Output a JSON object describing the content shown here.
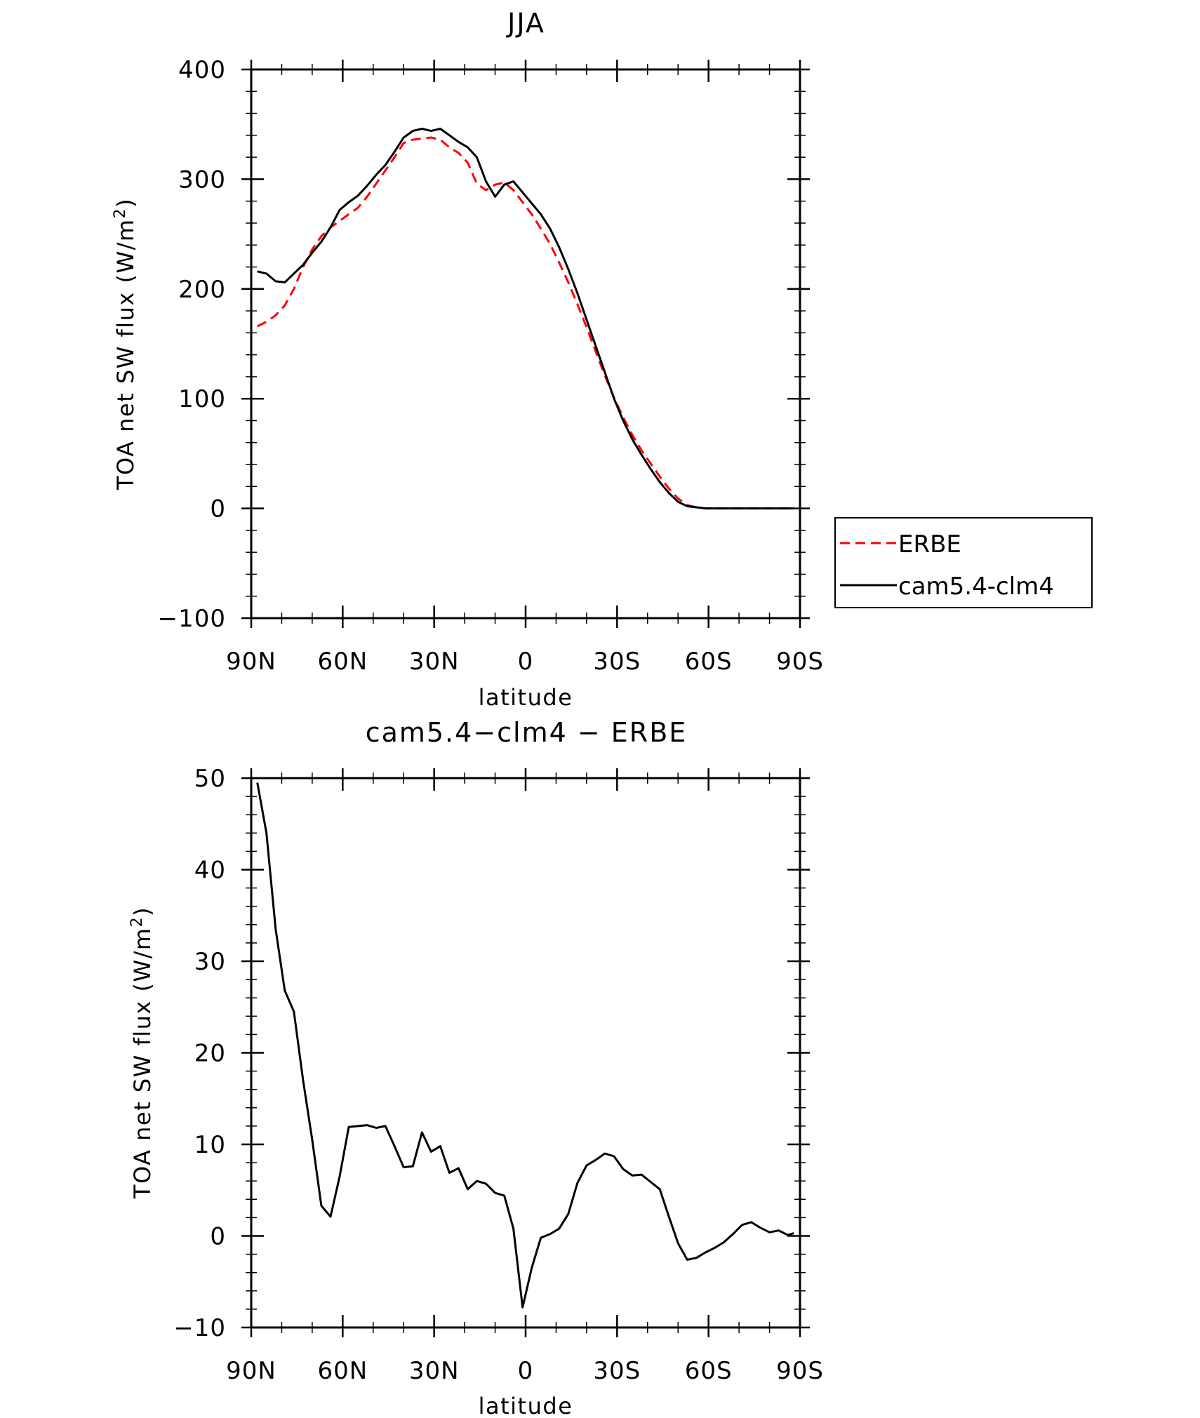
{
  "chart_data": [
    {
      "type": "line",
      "title": "JJA",
      "xlabel": "latitude",
      "ylabel": "TOA net SW flux (W/m",
      "ylabel_sup": "2",
      "ylabel_end": ")",
      "xlim": [
        90,
        -90
      ],
      "ylim": [
        -100,
        400
      ],
      "xticks": [
        90,
        60,
        30,
        0,
        -30,
        -60,
        -90
      ],
      "xticklabels": [
        "90N",
        "60N",
        "30N",
        "0",
        "30S",
        "60S",
        "90S"
      ],
      "yticks": [
        -100,
        0,
        100,
        200,
        300,
        400
      ],
      "yticklabels": [
        "−100",
        "0",
        "100",
        "200",
        "300",
        "400"
      ],
      "grid": false,
      "legend": "right",
      "series": [
        {
          "name": "ERBE",
          "color": "#ff0000",
          "style": "dashed",
          "x": [
            88,
            85,
            82,
            79,
            76,
            73,
            70,
            67,
            64,
            61,
            58,
            55,
            52,
            49,
            46,
            43,
            40,
            37,
            34,
            31,
            28,
            25,
            22,
            19,
            16,
            13,
            10,
            7,
            4,
            1,
            -2,
            -5,
            -8,
            -11,
            -14,
            -17,
            -20,
            -23,
            -26,
            -29,
            -32,
            -35,
            -38,
            -41,
            -44,
            -47,
            -50,
            -53,
            -56,
            -59,
            -62,
            -65,
            -68,
            -71,
            -74,
            -77,
            -80,
            -83,
            -86,
            -88
          ],
          "y": [
            166,
            170,
            176,
            185,
            200,
            220,
            236,
            248,
            256,
            262,
            268,
            274,
            284,
            296,
            308,
            320,
            333,
            336,
            337,
            338,
            336,
            329,
            324,
            315,
            296,
            290,
            295,
            297,
            290,
            279,
            268,
            255,
            241,
            224,
            206,
            186,
            165,
            143,
            121,
            101,
            83,
            67,
            53,
            41,
            29,
            18,
            9,
            3,
            1,
            0,
            0,
            0,
            0,
            0,
            0,
            0,
            0,
            0,
            0,
            0
          ]
        },
        {
          "name": "cam5.4-clm4",
          "color": "#000000",
          "style": "solid",
          "x": [
            88,
            85,
            82,
            79,
            76,
            73,
            70,
            67,
            64,
            61,
            58,
            55,
            52,
            49,
            46,
            43,
            40,
            37,
            34,
            31,
            28,
            25,
            22,
            19,
            16,
            13,
            10,
            7,
            4,
            1,
            -2,
            -5,
            -8,
            -11,
            -14,
            -17,
            -20,
            -23,
            -26,
            -29,
            -32,
            -35,
            -38,
            -41,
            -44,
            -47,
            -50,
            -53,
            -56,
            -59,
            -62,
            -65,
            -68,
            -71,
            -74,
            -77,
            -80,
            -83,
            -86,
            -88
          ],
          "y": [
            216,
            214,
            207,
            206,
            214,
            222,
            233,
            243,
            256,
            272,
            279,
            285,
            294,
            304,
            313,
            325,
            338,
            344,
            346,
            344,
            346,
            340,
            334,
            329,
            320,
            298,
            284,
            295,
            298,
            288,
            278,
            268,
            255,
            238,
            218,
            196,
            172,
            148,
            124,
            100,
            80,
            63,
            49,
            36,
            24,
            14,
            6,
            2,
            1,
            0,
            0,
            0,
            0,
            0,
            0,
            0,
            0,
            0,
            0,
            0
          ]
        }
      ]
    },
    {
      "type": "line",
      "title": "cam5.4−clm4 − ERBE",
      "xlabel": "latitude",
      "ylabel": "TOA net SW flux (W/m",
      "ylabel_sup": "2",
      "ylabel_end": ")",
      "xlim": [
        90,
        -90
      ],
      "ylim": [
        -10,
        50
      ],
      "xticks": [
        90,
        60,
        30,
        0,
        -30,
        -60,
        -90
      ],
      "xticklabels": [
        "90N",
        "60N",
        "30N",
        "0",
        "30S",
        "60S",
        "90S"
      ],
      "yticks": [
        -10,
        0,
        10,
        20,
        30,
        40,
        50
      ],
      "yticklabels": [
        "−10",
        "0",
        "10",
        "20",
        "30",
        "40",
        "50"
      ],
      "grid": false,
      "series": [
        {
          "name": "",
          "color": "#000000",
          "style": "solid",
          "x": [
            88,
            85,
            82,
            79,
            76,
            73,
            70,
            67,
            64,
            61,
            58,
            55,
            52,
            49,
            46,
            43,
            40,
            37,
            34,
            31,
            28,
            25,
            22,
            19,
            16,
            13,
            10,
            7,
            4,
            1,
            -2,
            -5,
            -8,
            -11,
            -14,
            -17,
            -20,
            -23,
            -26,
            -29,
            -32,
            -35,
            -38,
            -41,
            -44,
            -47,
            -50,
            -53,
            -56,
            -59,
            -62,
            -65,
            -68,
            -71,
            -74,
            -77,
            -80,
            -83,
            -86,
            -88
          ],
          "y": [
            49.5,
            44,
            33.5,
            26.8,
            24.5,
            17,
            10.5,
            3.3,
            2.1,
            6.5,
            11.9,
            12.0,
            12.1,
            11.8,
            12.0,
            9.8,
            7.5,
            7.6,
            11.3,
            9.2,
            9.8,
            6.9,
            7.4,
            5.1,
            6.0,
            5.7,
            4.7,
            4.4,
            0.8,
            -7.8,
            -3.5,
            -0.2,
            0.2,
            0.8,
            2.4,
            5.8,
            7.7,
            8.3,
            9.0,
            8.7,
            7.3,
            6.6,
            6.7,
            5.9,
            5.1,
            2.1,
            -0.8,
            -2.6,
            -2.4,
            -1.8,
            -1.3,
            -0.7,
            0.2,
            1.2,
            1.5,
            0.9,
            0.4,
            0.6,
            0.1,
            0.3
          ]
        }
      ]
    }
  ]
}
